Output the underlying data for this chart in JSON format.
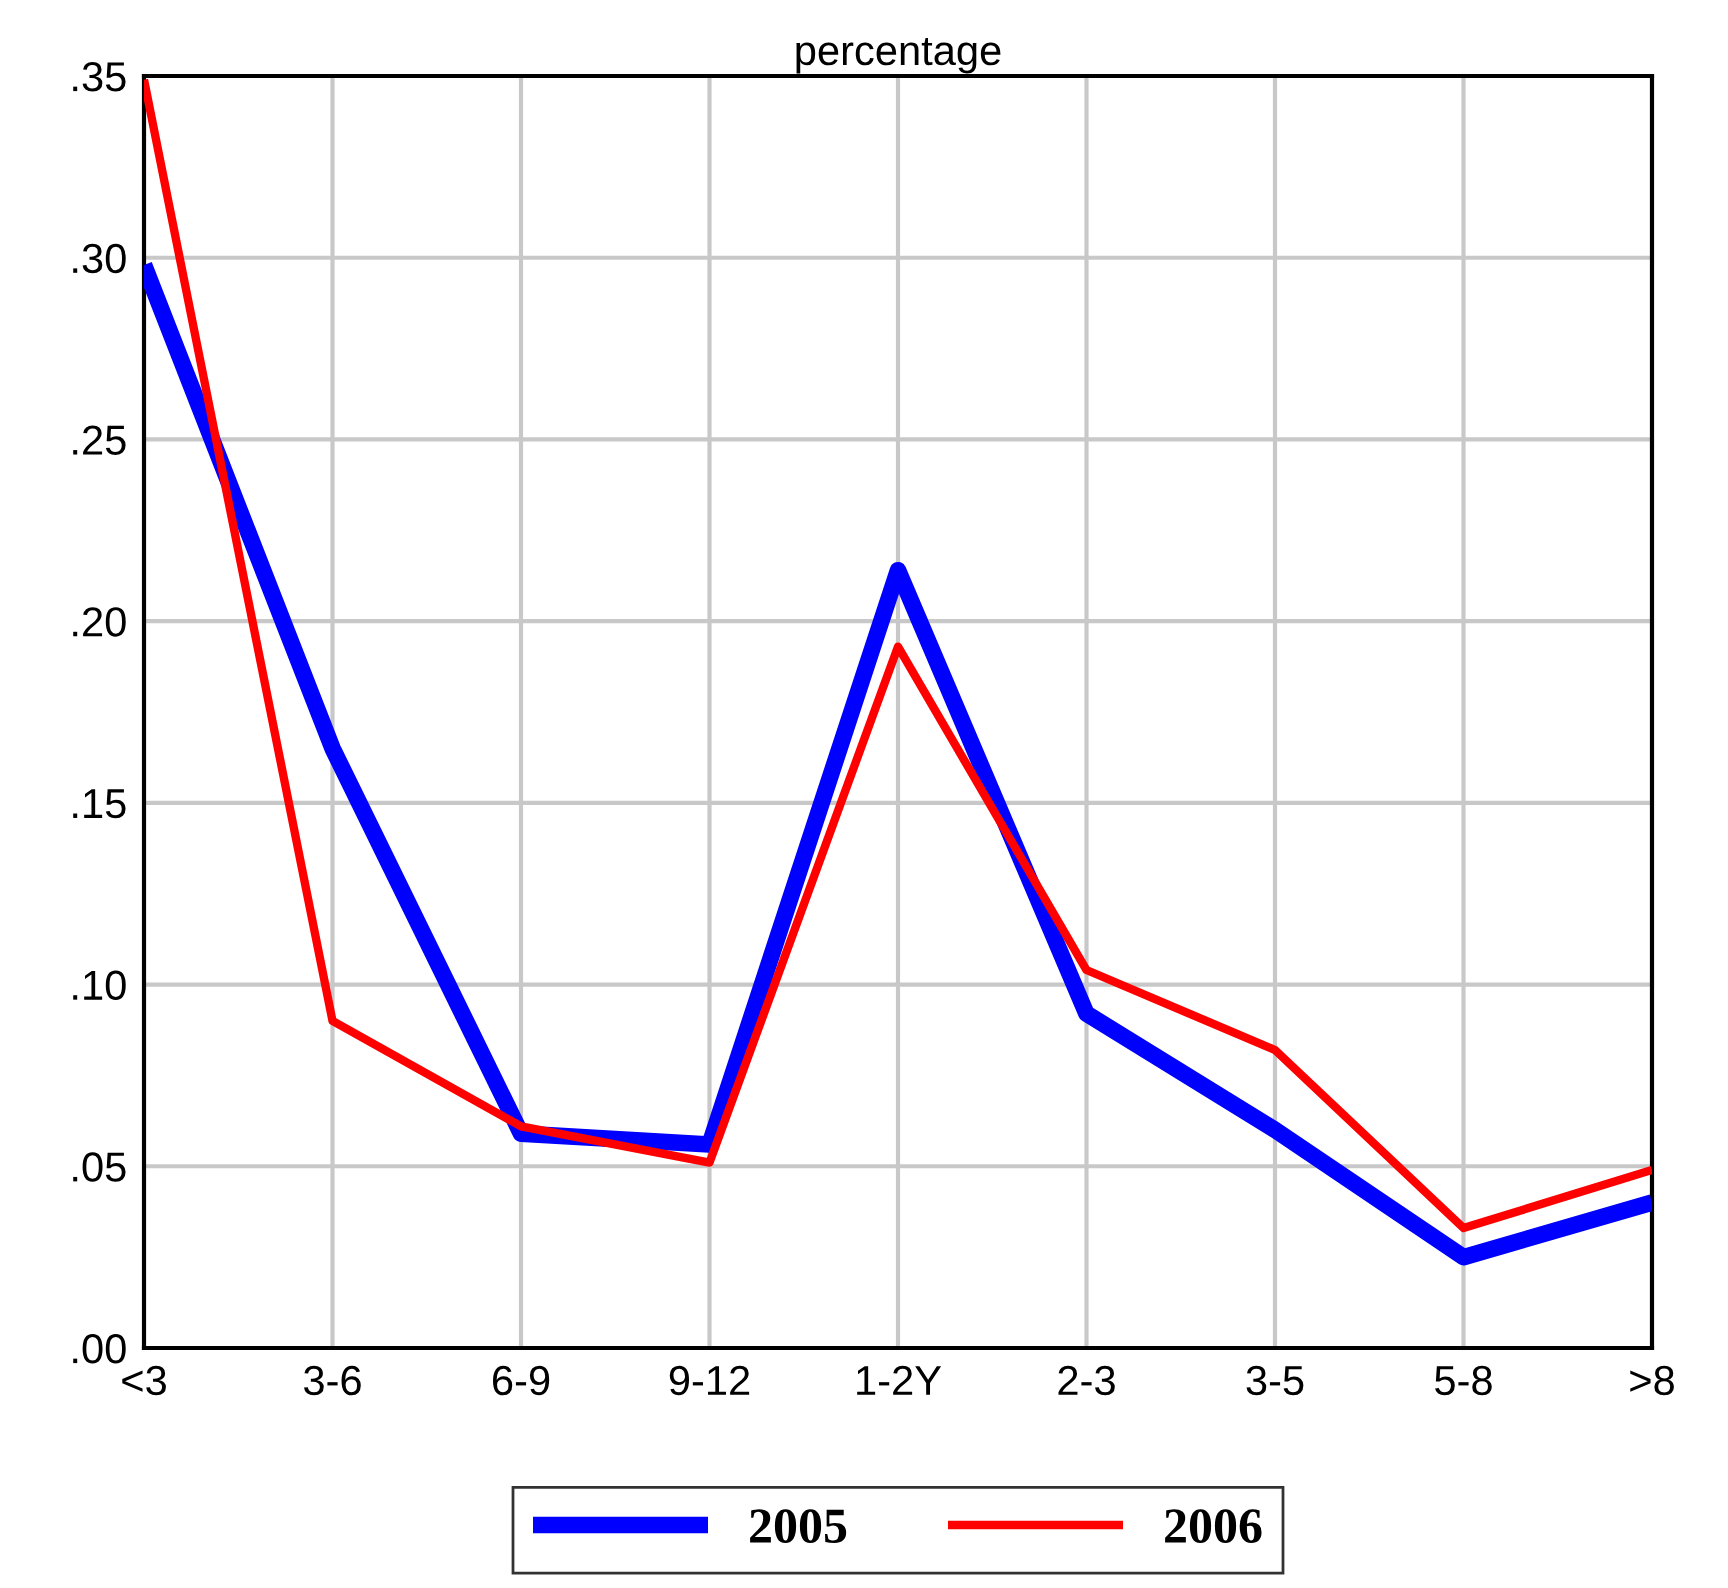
{
  "chart_data": {
    "type": "line",
    "title": "percentage",
    "categories": [
      "<3",
      "3-6",
      "6-9",
      "9-12",
      "1-2Y",
      "2-3",
      "3-5",
      "5-8",
      ">8"
    ],
    "series": [
      {
        "name": "2005",
        "color": "#0000ff",
        "values": [
          0.298,
          0.165,
          0.059,
          0.056,
          0.214,
          0.092,
          0.06,
          0.025,
          0.04
        ]
      },
      {
        "name": "2006",
        "color": "#ff0000",
        "values": [
          0.349,
          0.09,
          0.061,
          0.051,
          0.193,
          0.104,
          0.082,
          0.033,
          0.049
        ]
      }
    ],
    "ylim": [
      0,
      0.35
    ],
    "yticks": [
      {
        "value": 0,
        "label": ".00"
      },
      {
        "value": 0.05,
        "label": ".05"
      },
      {
        "value": 0.1,
        "label": ".10"
      },
      {
        "value": 0.15,
        "label": ".15"
      },
      {
        "value": 0.2,
        "label": ".20"
      },
      {
        "value": 0.25,
        "label": ".25"
      },
      {
        "value": 0.3,
        "label": ".30"
      },
      {
        "value": 0.35,
        "label": ".35"
      }
    ],
    "grid": true,
    "legend": "bottom",
    "marker": "none",
    "line_style": "solid"
  }
}
